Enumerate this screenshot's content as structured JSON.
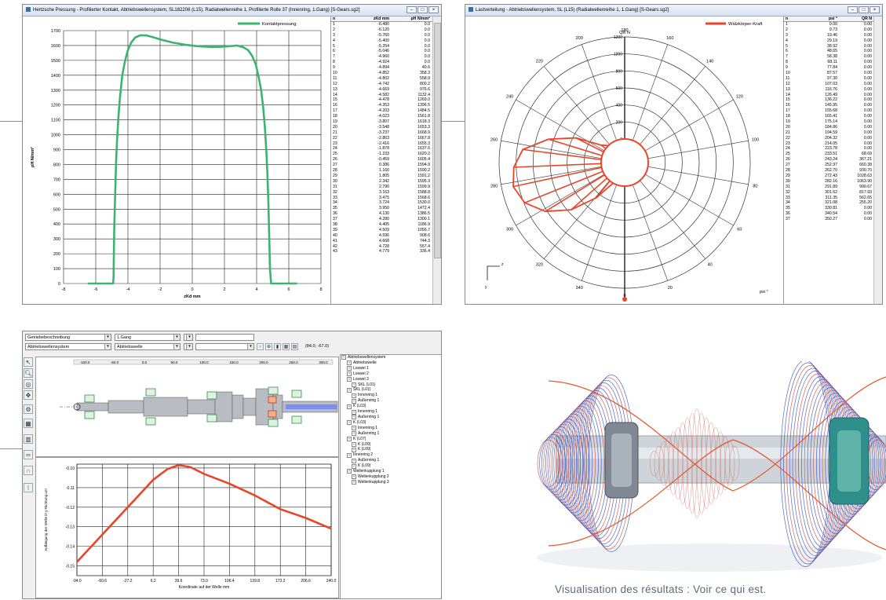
{
  "contact_window": {
    "title": "Hertzsche Pressung - Profilierter Kontakt, Abtriebswellensystem, SL182206 (L15), Radialwellenreihe 1, Profilierte Rolle 37 (Innenring, 1.Gang) [S-Gears.sg2]",
    "legend": "Kontaktpressung",
    "x_axis_label": "zKd mm",
    "y_axis_label": "pH N/mm²",
    "table_headers": [
      "n",
      "zKd mm",
      "pH N/mm²"
    ],
    "table_rows": [
      [
        "1",
        "-6.480",
        "0.0"
      ],
      [
        "2",
        "-6.120",
        "0.0"
      ],
      [
        "3",
        "-5.760",
        "0.0"
      ],
      [
        "4",
        "-5.400",
        "0.0"
      ],
      [
        "5",
        "-5.254",
        "0.0"
      ],
      [
        "6",
        "-5.046",
        "0.0"
      ],
      [
        "7",
        "-4.960",
        "0.0"
      ],
      [
        "8",
        "-4.924",
        "0.0"
      ],
      [
        "9",
        "-4.894",
        "40.6"
      ],
      [
        "10",
        "-4.852",
        "358.3"
      ],
      [
        "11",
        "-4.802",
        "558.9"
      ],
      [
        "12",
        "-4.742",
        "800.2"
      ],
      [
        "13",
        "-4.669",
        "976.6"
      ],
      [
        "14",
        "-4.582",
        "1132.4"
      ],
      [
        "15",
        "-4.478",
        "1269.0"
      ],
      [
        "16",
        "-4.353",
        "1396.5"
      ],
      [
        "17",
        "-4.203",
        "1484.5"
      ],
      [
        "18",
        "-4.023",
        "1561.8"
      ],
      [
        "19",
        "-3.807",
        "1618.3"
      ],
      [
        "20",
        "-3.548",
        "1653.3"
      ],
      [
        "21",
        "-3.237",
        "1668.9"
      ],
      [
        "22",
        "-2.863",
        "1667.8"
      ],
      [
        "23",
        "-2.416",
        "1655.3"
      ],
      [
        "24",
        "-1.878",
        "1637.6"
      ],
      [
        "25",
        "-1.233",
        "1620.2"
      ],
      [
        "26",
        "-0.459",
        "1605.4"
      ],
      [
        "27",
        "0.386",
        "1594.9"
      ],
      [
        "28",
        "1.160",
        "1590.2"
      ],
      [
        "29",
        "1.805",
        "1591.2"
      ],
      [
        "30",
        "2.342",
        "1595.3"
      ],
      [
        "31",
        "2.790",
        "1599.9"
      ],
      [
        "32",
        "3.163",
        "1588.8"
      ],
      [
        "33",
        "3.475",
        "1568.6"
      ],
      [
        "34",
        "3.724",
        "1530.0"
      ],
      [
        "35",
        "3.950",
        "1472.4"
      ],
      [
        "36",
        "4.130",
        "1386.5"
      ],
      [
        "37",
        "4.280",
        "1300.1"
      ],
      [
        "38",
        "4.405",
        "1186.9"
      ],
      [
        "39",
        "4.509",
        "1056.7"
      ],
      [
        "40",
        "4.596",
        "908.6"
      ],
      [
        "41",
        "4.668",
        "744.3"
      ],
      [
        "42",
        "4.728",
        "557.4"
      ],
      [
        "43",
        "4.779",
        "336.4"
      ]
    ],
    "chart_data": {
      "type": "line",
      "title": "",
      "xlabel": "zKd mm",
      "ylabel": "pH N/mm²",
      "xlim": [
        -8,
        8
      ],
      "ylim": [
        0,
        1700
      ],
      "x_ticks": [
        -8,
        -6,
        -4,
        -2,
        0,
        2,
        4,
        6,
        8
      ],
      "y_ticks": [
        0,
        100,
        200,
        300,
        400,
        500,
        600,
        700,
        800,
        900,
        1000,
        1100,
        1200,
        1300,
        1400,
        1500,
        1600,
        1700
      ],
      "series": [
        {
          "name": "Kontaktpressung",
          "color": "#3cb371",
          "x": [
            -6.48,
            -5.4,
            -5.05,
            -4.96,
            -4.92,
            -4.894,
            -4.852,
            -4.802,
            -4.742,
            -4.669,
            -4.582,
            -4.478,
            -4.353,
            -4.203,
            -4.023,
            -3.807,
            -3.548,
            -3.237,
            -2.863,
            -2.416,
            -1.878,
            -1.233,
            -0.459,
            0.386,
            1.16,
            1.805,
            2.342,
            2.79,
            3.163,
            3.475,
            3.724,
            3.95,
            4.13,
            4.28,
            4.405,
            4.509,
            4.596,
            4.668,
            4.728,
            4.779,
            4.83,
            4.9,
            5.2,
            6.5
          ],
          "y": [
            0,
            0,
            0,
            0,
            0,
            40.6,
            358.3,
            558.9,
            800.2,
            976.6,
            1132.4,
            1269.0,
            1396.5,
            1484.5,
            1561.8,
            1618.3,
            1653.3,
            1668.9,
            1667.8,
            1655.3,
            1637.6,
            1620.2,
            1605.4,
            1594.9,
            1590.2,
            1591.2,
            1595.3,
            1599.9,
            1588.8,
            1568.6,
            1530.0,
            1472.4,
            1386.5,
            1300.1,
            1186.9,
            1056.7,
            908.6,
            744.3,
            557.4,
            336.4,
            100,
            0,
            0,
            0
          ]
        }
      ]
    }
  },
  "load_window": {
    "title": "Lastverteilung - Abtriebswellensystem, SL (L15) (Radialwellenreihe 1, 1.Gang) [S-Gears.sg2]",
    "legend": "Wälzkörper-Kraft",
    "radial_label": "QR N",
    "angle_unit": "psi °",
    "axis_label_z": "z",
    "axis_label_y": "y",
    "table_headers": [
      "n",
      "psi °",
      "QR N"
    ],
    "table_rows": [
      [
        "1",
        "0.00",
        "0.00"
      ],
      [
        "2",
        "9.73",
        "0.00"
      ],
      [
        "3",
        "19.46",
        "0.00"
      ],
      [
        "4",
        "29.19",
        "0.00"
      ],
      [
        "5",
        "38.92",
        "0.00"
      ],
      [
        "6",
        "48.65",
        "0.00"
      ],
      [
        "7",
        "58.38",
        "0.00"
      ],
      [
        "8",
        "68.11",
        "0.00"
      ],
      [
        "9",
        "77.84",
        "0.00"
      ],
      [
        "10",
        "87.57",
        "0.00"
      ],
      [
        "11",
        "97.30",
        "0.00"
      ],
      [
        "12",
        "107.03",
        "0.00"
      ],
      [
        "13",
        "116.76",
        "0.00"
      ],
      [
        "14",
        "126.49",
        "0.00"
      ],
      [
        "15",
        "136.22",
        "0.00"
      ],
      [
        "16",
        "145.95",
        "0.00"
      ],
      [
        "17",
        "155.68",
        "0.00"
      ],
      [
        "18",
        "165.41",
        "0.00"
      ],
      [
        "19",
        "175.14",
        "0.00"
      ],
      [
        "20",
        "184.86",
        "0.00"
      ],
      [
        "21",
        "194.59",
        "0.00"
      ],
      [
        "22",
        "204.32",
        "0.00"
      ],
      [
        "23",
        "214.05",
        "0.00"
      ],
      [
        "24",
        "223.78",
        "0.00"
      ],
      [
        "25",
        "233.51",
        "68.69"
      ],
      [
        "26",
        "243.24",
        "367.21"
      ],
      [
        "27",
        "252.97",
        "660.38"
      ],
      [
        "28",
        "262.70",
        "930.70"
      ],
      [
        "29",
        "272.43",
        "1028.63"
      ],
      [
        "30",
        "282.16",
        "1063.90"
      ],
      [
        "31",
        "291.89",
        "990.67"
      ],
      [
        "32",
        "301.62",
        "817.93"
      ],
      [
        "33",
        "311.35",
        "562.65"
      ],
      [
        "34",
        "321.08",
        "255.20"
      ],
      [
        "35",
        "330.81",
        "0.00"
      ],
      [
        "36",
        "340.54",
        "0.00"
      ],
      [
        "37",
        "350.27",
        "0.00"
      ]
    ],
    "chart_data": {
      "type": "polar",
      "title": "",
      "radial_label": "QR N",
      "angle_label": "psi °",
      "radial_ticks": [
        0,
        200,
        400,
        600,
        800,
        1000,
        1200
      ],
      "angle_ticks": [
        0,
        20,
        40,
        60,
        80,
        100,
        120,
        140,
        160,
        180,
        200,
        220,
        240,
        260,
        280,
        300,
        320,
        340
      ],
      "series": [
        {
          "name": "Wälzkörper-Kraft",
          "color": "#e8462a",
          "angle": [
            223.78,
            233.51,
            243.24,
            252.97,
            262.7,
            272.43,
            282.16,
            291.89,
            301.62,
            311.35,
            321.08,
            330.81
          ],
          "value": [
            0,
            68.69,
            367.21,
            660.38,
            930.7,
            1028.63,
            1063.9,
            990.67,
            817.93,
            562.65,
            255.2,
            0
          ]
        }
      ]
    }
  },
  "shaft_window": {
    "combo_1": "Getriebebeschreibung",
    "combo_2": "1.Gang",
    "combo_3": "Abtriebswellensystem",
    "combo_4": "Abtriebswelle",
    "coord_readout": "(84.0; -67.0)",
    "ruler_ticks": [
      "-100.0",
      "-50.0",
      "0.0",
      "50.0",
      "100.0",
      "150.0",
      "200.0",
      "250.0",
      "300.0"
    ],
    "tree_items": [
      "Abtriebswellensystem",
      "Abtriebswelle",
      "Loswel 1",
      "Loswel 2",
      "Loswel 3",
      "SKL (L01)",
      "SKL (L01)",
      "Innenring 1",
      "Außenring 1",
      "K (L03)",
      "Innenring 1",
      "Außenring 1",
      "K (L03)",
      "Innenring 1",
      "Außenring 1",
      "K (L07)",
      "K (L09)",
      "K (L09)",
      "Innenring 2",
      "Außenring 1",
      "K (L09)",
      "Wellenkupplung 1",
      "Wellenkupplung 2",
      "Wellenkupplung 3"
    ],
    "tool_icons": [
      "cursor-icon",
      "zoom-icon",
      "bearing-icon",
      "move-icon",
      "gear-icon",
      "grid-icon",
      "chart-icon",
      "shaft-icon",
      "magnet-icon",
      "graph-icon"
    ],
    "chart_data": {
      "type": "line",
      "title": "",
      "xlabel": "Koordinate auf der Welle mm",
      "ylabel": "Aufbiegung der Welle in y-Richtung um",
      "x_ticks": [
        -94.0,
        -60.6,
        -27.2,
        6.2,
        39.6,
        73.0,
        106.4,
        139.8,
        173.2,
        206.6,
        240.0
      ],
      "y_ticks": [
        -0.15,
        -0.14,
        -0.13,
        -0.12,
        -0.11,
        -0.1
      ],
      "xlim": [
        -94.0,
        240.0
      ],
      "ylim": [
        -0.155,
        -0.098
      ],
      "series": [
        {
          "name": "",
          "color": "#e8462a",
          "x": [
            -94.0,
            -60.6,
            -27.2,
            6.2,
            25.0,
            39.6,
            55.0,
            73.0,
            106.4,
            139.8,
            173.2,
            206.6,
            240.0
          ],
          "y": [
            -0.148,
            -0.134,
            -0.12,
            -0.106,
            -0.1005,
            -0.0985,
            -0.0995,
            -0.103,
            -0.108,
            -0.114,
            -0.121,
            -0.1255,
            -0.131
          ]
        }
      ]
    }
  },
  "caption": "Visualisation des résultats : Voir ce qui est."
}
